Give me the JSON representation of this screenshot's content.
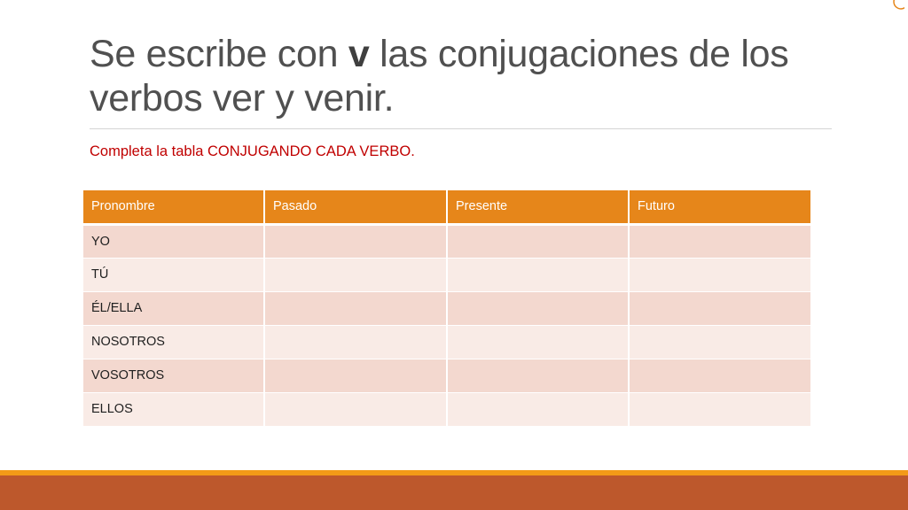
{
  "slide": {
    "title_before": "Se escribe con ",
    "title_bold": "v",
    "title_after": " las conjugaciones de los verbos ver y venir.",
    "subtitle": "Completa la tabla CONJUGANDO CADA VERBO."
  },
  "table": {
    "headers": [
      "Pronombre",
      "Pasado",
      "Presente",
      "Futuro"
    ],
    "rows": [
      [
        "YO",
        "",
        "",
        ""
      ],
      [
        "TÚ",
        "",
        "",
        ""
      ],
      [
        "ÉL/ELLA",
        "",
        "",
        ""
      ],
      [
        "NOSOTROS",
        "",
        "",
        ""
      ],
      [
        "VOSOTROS",
        "",
        "",
        ""
      ],
      [
        "ELLOS",
        "",
        "",
        ""
      ]
    ]
  },
  "colors": {
    "header": "#e6861a",
    "row_odd": "#f3d8cf",
    "row_even": "#f9ebe6",
    "subtitle": "#c00000",
    "footer_line": "#f39a17",
    "footer_bar": "#bd582c"
  }
}
